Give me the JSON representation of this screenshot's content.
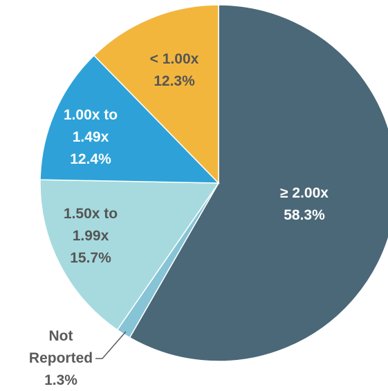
{
  "chart_data": {
    "type": "pie",
    "categories": [
      [
        "≥ 2.00x"
      ],
      [
        "Not",
        "Reported"
      ],
      [
        "1.50x to",
        "1.99x"
      ],
      [
        "1.00x to",
        "1.49x"
      ],
      [
        "< 1.00x"
      ]
    ],
    "values": [
      58.3,
      1.3,
      15.7,
      12.4,
      12.3
    ],
    "value_labels": [
      "58.3%",
      "1.3%",
      "15.7%",
      "12.4%",
      "12.3%"
    ],
    "colors": [
      "#4b6878",
      "#86c4d6",
      "#a6dade",
      "#2ea2d8",
      "#f3b63d"
    ]
  }
}
